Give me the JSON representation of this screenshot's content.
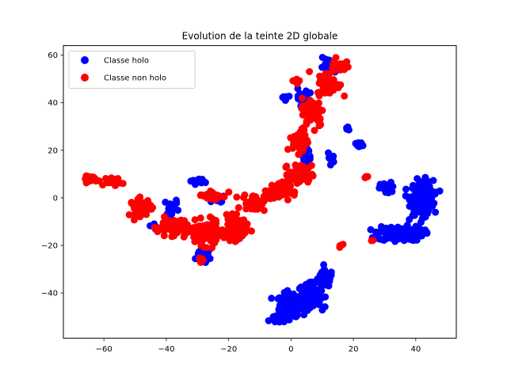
{
  "chart_data": {
    "type": "scatter",
    "title": "Evolution de la teinte 2D globale",
    "xlabel": "",
    "ylabel": "",
    "xlim": [
      -73,
      53
    ],
    "ylim": [
      -59,
      64
    ],
    "x_ticks": [
      -60,
      -40,
      -20,
      0,
      20,
      40
    ],
    "y_ticks": [
      -40,
      -20,
      0,
      20,
      40,
      60
    ],
    "x_tick_labels": [
      "−60",
      "−40",
      "−20",
      "0",
      "20",
      "40"
    ],
    "y_tick_labels": [
      "−40",
      "−20",
      "0",
      "20",
      "40",
      "60"
    ],
    "grid": false,
    "legend_position": "top-left",
    "series": [
      {
        "name": "Classe holo",
        "color": "#0000ff",
        "clusters": [
          {
            "center": [
              0,
              -45
            ],
            "spread": [
              3,
              4
            ],
            "count": 180
          },
          {
            "center": [
              6,
              -41
            ],
            "spread": [
              3,
              4
            ],
            "count": 160
          },
          {
            "center": [
              11,
              -34
            ],
            "spread": [
              2,
              3
            ],
            "count": 60
          },
          {
            "center": [
              -4,
              -51
            ],
            "spread": [
              2,
              1.2
            ],
            "count": 40
          },
          {
            "center": [
              42,
              0
            ],
            "spread": [
              3,
              6
            ],
            "count": 250
          },
          {
            "center": [
              35,
              -15
            ],
            "spread": [
              6,
              2.5
            ],
            "count": 150
          },
          {
            "center": [
              31,
              4
            ],
            "spread": [
              2,
              2
            ],
            "count": 30
          },
          {
            "center": [
              22,
              22
            ],
            "spread": [
              1,
              1
            ],
            "count": 15
          },
          {
            "center": [
              18,
              29
            ],
            "spread": [
              0.4,
              0.8
            ],
            "count": 6
          },
          {
            "center": [
              -28,
              -24
            ],
            "spread": [
              2,
              2
            ],
            "count": 35
          },
          {
            "center": [
              -30,
              7
            ],
            "spread": [
              2,
              1
            ],
            "count": 12
          },
          {
            "center": [
              -38,
              -4
            ],
            "spread": [
              2,
              3
            ],
            "count": 15
          },
          {
            "center": [
              -44,
              -12
            ],
            "spread": [
              1,
              1
            ],
            "count": 5
          },
          {
            "center": [
              -2,
              42
            ],
            "spread": [
              1,
              1
            ],
            "count": 6
          },
          {
            "center": [
              3,
              42
            ],
            "spread": [
              2,
              3
            ],
            "count": 20
          },
          {
            "center": [
              5,
              18
            ],
            "spread": [
              2,
              3
            ],
            "count": 20
          },
          {
            "center": [
              12,
              55
            ],
            "spread": [
              2,
              3
            ],
            "count": 20
          },
          {
            "center": [
              13,
              17
            ],
            "spread": [
              1,
              2
            ],
            "count": 8
          },
          {
            "center": [
              -23,
              -1
            ],
            "spread": [
              2,
              2
            ],
            "count": 10
          }
        ]
      },
      {
        "name": "Classe non holo",
        "color": "#ff0000",
        "clusters": [
          {
            "center": [
              -64,
              8
            ],
            "spread": [
              2,
              1
            ],
            "count": 25
          },
          {
            "center": [
              -57,
              7
            ],
            "spread": [
              2,
              1.5
            ],
            "count": 25
          },
          {
            "center": [
              -48,
              -4
            ],
            "spread": [
              3,
              3
            ],
            "count": 50
          },
          {
            "center": [
              -38,
              -12
            ],
            "spread": [
              4,
              3
            ],
            "count": 60
          },
          {
            "center": [
              -28,
              -15
            ],
            "spread": [
              4,
              4
            ],
            "count": 120
          },
          {
            "center": [
              -18,
              -13
            ],
            "spread": [
              3,
              4
            ],
            "count": 80
          },
          {
            "center": [
              -12,
              -2
            ],
            "spread": [
              3,
              3
            ],
            "count": 40
          },
          {
            "center": [
              -25,
              1
            ],
            "spread": [
              4,
              2
            ],
            "count": 25
          },
          {
            "center": [
              -29,
              -26
            ],
            "spread": [
              1,
              0.8
            ],
            "count": 8
          },
          {
            "center": [
              -4,
              3
            ],
            "spread": [
              3,
              3
            ],
            "count": 80
          },
          {
            "center": [
              3,
              10
            ],
            "spread": [
              3,
              3
            ],
            "count": 80
          },
          {
            "center": [
              3,
              24
            ],
            "spread": [
              2,
              4
            ],
            "count": 60
          },
          {
            "center": [
              7,
              36
            ],
            "spread": [
              3,
              5
            ],
            "count": 80
          },
          {
            "center": [
              12,
              48
            ],
            "spread": [
              3,
              4
            ],
            "count": 70
          },
          {
            "center": [
              15,
              56
            ],
            "spread": [
              2,
              2
            ],
            "count": 30
          },
          {
            "center": [
              2,
              49
            ],
            "spread": [
              1,
              1
            ],
            "count": 8
          },
          {
            "center": [
              16,
              -20
            ],
            "spread": [
              1,
              0.5
            ],
            "count": 6
          },
          {
            "center": [
              24,
              9
            ],
            "spread": [
              0.6,
              0.4
            ],
            "count": 4
          },
          {
            "center": [
              26,
              -18
            ],
            "spread": [
              0.4,
              0.4
            ],
            "count": 2
          }
        ]
      }
    ]
  }
}
